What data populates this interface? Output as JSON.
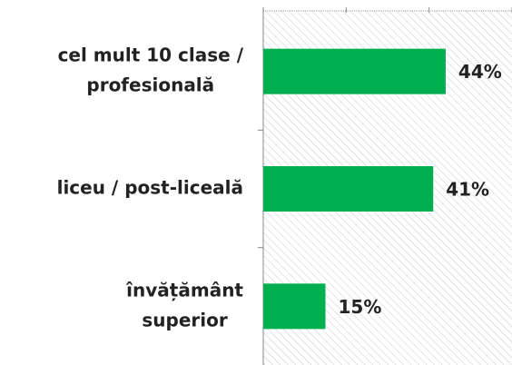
{
  "chart_data": {
    "type": "barh",
    "categories": [
      [
        "cel mult 10 clase /",
        "profesională"
      ],
      [
        "liceu / post-liceală"
      ],
      [
        "învățământ",
        "superior"
      ]
    ],
    "values": [
      44,
      41,
      15
    ],
    "value_labels": [
      "44%",
      "41%",
      "15%"
    ],
    "color": "#00b050",
    "xlim": [
      0,
      60
    ],
    "xticks": [
      0,
      20,
      40,
      60
    ]
  }
}
